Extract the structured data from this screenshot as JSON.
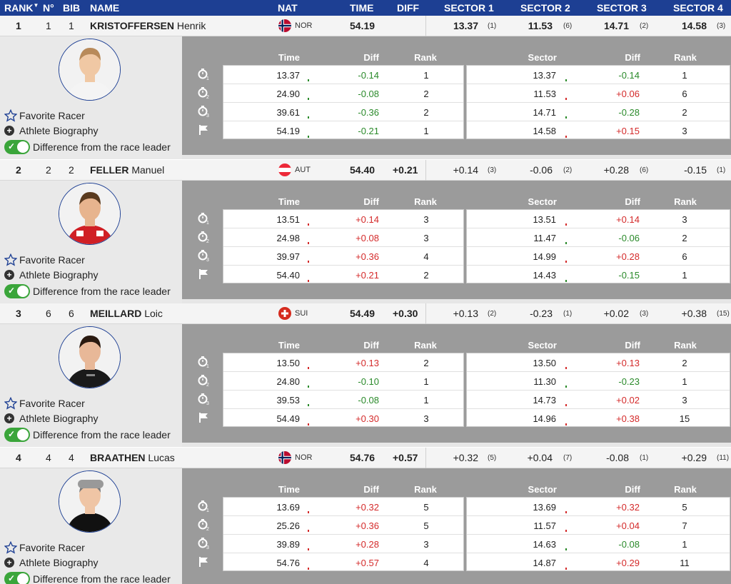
{
  "header": {
    "rank": "RANK",
    "rank_sort": "▼",
    "no": "N°",
    "bib": "BIB",
    "name": "NAME",
    "nat": "NAT",
    "time": "TIME",
    "diff": "DIFF",
    "sector1": "SECTOR 1",
    "sector2": "SECTOR 2",
    "sector3": "SECTOR 3",
    "sector4": "SECTOR 4"
  },
  "labels": {
    "favorite": "Favorite Racer",
    "biography": "Athlete Biography",
    "difference": "Difference from the race leader",
    "col_time": "Time",
    "col_diff": "Diff",
    "col_rank": "Rank",
    "col_sector": "Sector"
  },
  "colors": {
    "header_blue": "#1d3f93",
    "positive_red": "#d42a2a",
    "negative_green": "#2a8a2a",
    "toggle_green": "#3aa53a"
  },
  "racers": [
    {
      "rank": "1",
      "no": "1",
      "bib": "1",
      "last": "KRISTOFFERSEN",
      "first": "Henrik",
      "nat": "NOR",
      "time": "54.19",
      "diff": "",
      "sectors": [
        {
          "v": "13.37",
          "r": "(1)"
        },
        {
          "v": "11.53",
          "r": "(6)"
        },
        {
          "v": "14.71",
          "r": "(2)"
        },
        {
          "v": "14.58",
          "r": "(3)"
        }
      ],
      "splits": [
        {
          "time": "13.37",
          "diff": "-0.14",
          "rank": "1",
          "sector": "13.37",
          "sdiff": "-0.14",
          "srank": "1"
        },
        {
          "time": "24.90",
          "diff": "-0.08",
          "rank": "2",
          "sector": "11.53",
          "sdiff": "+0.06",
          "srank": "6"
        },
        {
          "time": "39.61",
          "diff": "-0.36",
          "rank": "2",
          "sector": "14.71",
          "sdiff": "-0.28",
          "srank": "2"
        },
        {
          "time": "54.19",
          "diff": "-0.21",
          "rank": "1",
          "sector": "14.58",
          "sdiff": "+0.15",
          "srank": "3"
        }
      ]
    },
    {
      "rank": "2",
      "no": "2",
      "bib": "2",
      "last": "FELLER",
      "first": "Manuel",
      "nat": "AUT",
      "time": "54.40",
      "diff": "+0.21",
      "sectors": [
        {
          "v": "+0.14",
          "r": "(3)"
        },
        {
          "v": "-0.06",
          "r": "(2)"
        },
        {
          "v": "+0.28",
          "r": "(6)"
        },
        {
          "v": "-0.15",
          "r": "(1)"
        }
      ],
      "splits": [
        {
          "time": "13.51",
          "diff": "+0.14",
          "rank": "3",
          "sector": "13.51",
          "sdiff": "+0.14",
          "srank": "3"
        },
        {
          "time": "24.98",
          "diff": "+0.08",
          "rank": "3",
          "sector": "11.47",
          "sdiff": "-0.06",
          "srank": "2"
        },
        {
          "time": "39.97",
          "diff": "+0.36",
          "rank": "4",
          "sector": "14.99",
          "sdiff": "+0.28",
          "srank": "6"
        },
        {
          "time": "54.40",
          "diff": "+0.21",
          "rank": "2",
          "sector": "14.43",
          "sdiff": "-0.15",
          "srank": "1"
        }
      ]
    },
    {
      "rank": "3",
      "no": "6",
      "bib": "6",
      "last": "MEILLARD",
      "first": "Loic",
      "nat": "SUI",
      "time": "54.49",
      "diff": "+0.30",
      "sectors": [
        {
          "v": "+0.13",
          "r": "(2)"
        },
        {
          "v": "-0.23",
          "r": "(1)"
        },
        {
          "v": "+0.02",
          "r": "(3)"
        },
        {
          "v": "+0.38",
          "r": "(15)"
        }
      ],
      "splits": [
        {
          "time": "13.50",
          "diff": "+0.13",
          "rank": "2",
          "sector": "13.50",
          "sdiff": "+0.13",
          "srank": "2"
        },
        {
          "time": "24.80",
          "diff": "-0.10",
          "rank": "1",
          "sector": "11.30",
          "sdiff": "-0.23",
          "srank": "1"
        },
        {
          "time": "39.53",
          "diff": "-0.08",
          "rank": "1",
          "sector": "14.73",
          "sdiff": "+0.02",
          "srank": "3"
        },
        {
          "time": "54.49",
          "diff": "+0.30",
          "rank": "3",
          "sector": "14.96",
          "sdiff": "+0.38",
          "srank": "15"
        }
      ]
    },
    {
      "rank": "4",
      "no": "4",
      "bib": "4",
      "last": "BRAATHEN",
      "first": "Lucas",
      "nat": "NOR",
      "time": "54.76",
      "diff": "+0.57",
      "sectors": [
        {
          "v": "+0.32",
          "r": "(5)"
        },
        {
          "v": "+0.04",
          "r": "(7)"
        },
        {
          "v": "-0.08",
          "r": "(1)"
        },
        {
          "v": "+0.29",
          "r": "(11)"
        }
      ],
      "splits": [
        {
          "time": "13.69",
          "diff": "+0.32",
          "rank": "5",
          "sector": "13.69",
          "sdiff": "+0.32",
          "srank": "5"
        },
        {
          "time": "25.26",
          "diff": "+0.36",
          "rank": "5",
          "sector": "11.57",
          "sdiff": "+0.04",
          "srank": "7"
        },
        {
          "time": "39.89",
          "diff": "+0.28",
          "rank": "3",
          "sector": "14.63",
          "sdiff": "-0.08",
          "srank": "1"
        },
        {
          "time": "54.76",
          "diff": "+0.57",
          "rank": "4",
          "sector": "14.87",
          "sdiff": "+0.29",
          "srank": "11"
        }
      ]
    }
  ]
}
